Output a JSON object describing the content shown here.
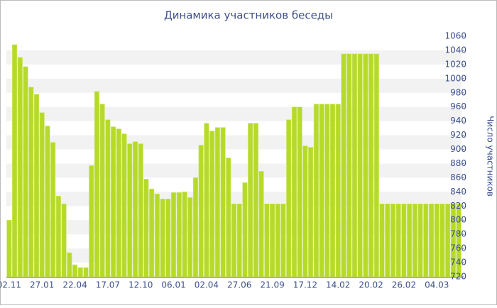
{
  "chart_data": {
    "type": "bar",
    "title": "Динамика участников беседы",
    "y_axis_label": "Число участников",
    "categories": [
      "02.11",
      null,
      null,
      null,
      null,
      null,
      "27.01",
      null,
      null,
      null,
      null,
      null,
      "22.04",
      null,
      null,
      null,
      null,
      null,
      "17.07",
      null,
      null,
      null,
      null,
      null,
      "12.10",
      null,
      null,
      null,
      null,
      null,
      "06.01",
      null,
      null,
      null,
      null,
      null,
      "02.04",
      null,
      null,
      null,
      null,
      null,
      "27.06",
      null,
      null,
      null,
      null,
      null,
      "21.09",
      null,
      null,
      null,
      null,
      null,
      "17.12",
      null,
      null,
      null,
      null,
      null,
      "14.02",
      null,
      null,
      null,
      null,
      null,
      "20.02",
      null,
      null,
      null,
      null,
      null,
      "26.02",
      null,
      null,
      null,
      null,
      null,
      "04.03",
      null,
      null,
      null,
      null
    ],
    "values": [
      800,
      1048,
      1030,
      1017,
      988,
      978,
      952,
      933,
      910,
      834,
      823,
      754,
      737,
      733,
      733,
      877,
      982,
      964,
      942,
      932,
      929,
      922,
      908,
      911,
      908,
      858,
      844,
      837,
      830,
      830,
      839,
      839,
      840,
      832,
      860,
      906,
      937,
      926,
      931,
      931,
      888,
      823,
      823,
      853,
      937,
      937,
      869,
      823,
      823,
      823,
      823,
      942,
      960,
      960,
      905,
      903,
      964,
      964,
      964,
      964,
      964,
      1035,
      1035,
      1035,
      1035,
      1035,
      1035,
      1035,
      823,
      823,
      823,
      823,
      823,
      823,
      823,
      823,
      823,
      823,
      823,
      823,
      823,
      823,
      823
    ],
    "color": "#b6da2a",
    "ylim": [
      720,
      1060
    ],
    "yticks": [
      720,
      740,
      760,
      780,
      800,
      820,
      840,
      860,
      880,
      900,
      920,
      940,
      960,
      980,
      1000,
      1020,
      1040,
      1060
    ],
    "grid": "bands"
  }
}
